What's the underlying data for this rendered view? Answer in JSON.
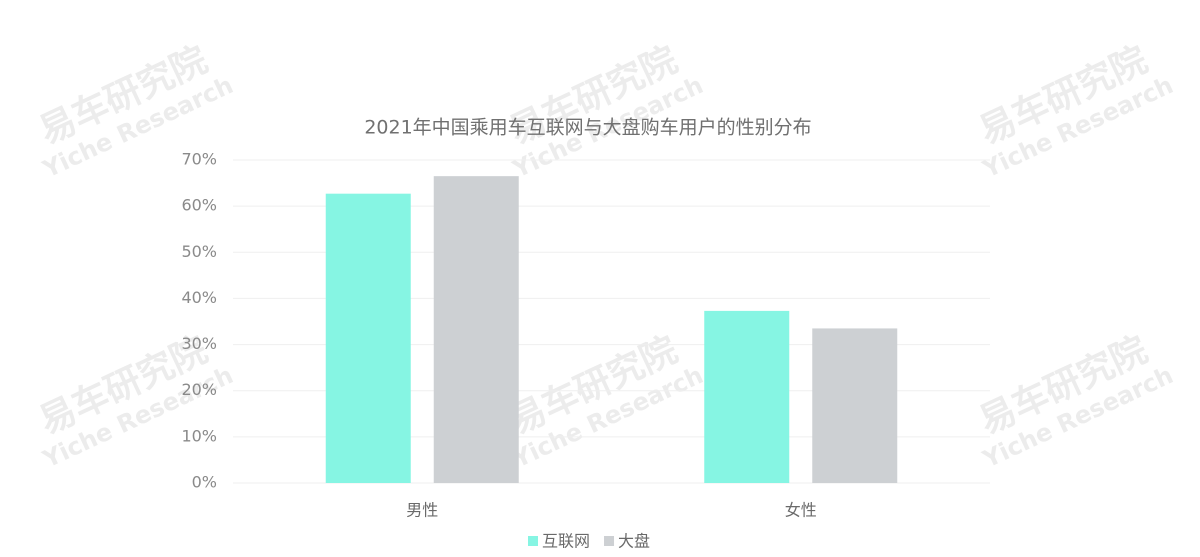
{
  "chart_data": {
    "type": "bar",
    "title": "2021年中国乘用车互联网与大盘购车用户的性别分布",
    "categories": [
      "男性",
      "女性"
    ],
    "series": [
      {
        "name": "互联网",
        "color": "#86f5e3",
        "values": [
          62.7,
          37.3
        ]
      },
      {
        "name": "大盘",
        "color": "#cdd0d3",
        "values": [
          66.5,
          33.5
        ]
      }
    ],
    "ylim": [
      0,
      70
    ],
    "yticks": [
      {
        "value": 0,
        "label": "0%"
      },
      {
        "value": 10,
        "label": "10%"
      },
      {
        "value": 20,
        "label": "20%"
      },
      {
        "value": 30,
        "label": "30%"
      },
      {
        "value": 40,
        "label": "40%"
      },
      {
        "value": 50,
        "label": "50%"
      },
      {
        "value": 60,
        "label": "60%"
      },
      {
        "value": 70,
        "label": "70%"
      }
    ],
    "grid": true,
    "legend": "bottom",
    "watermark": {
      "brand": "易车研究院",
      "subtitle": "Yiche Research"
    }
  }
}
